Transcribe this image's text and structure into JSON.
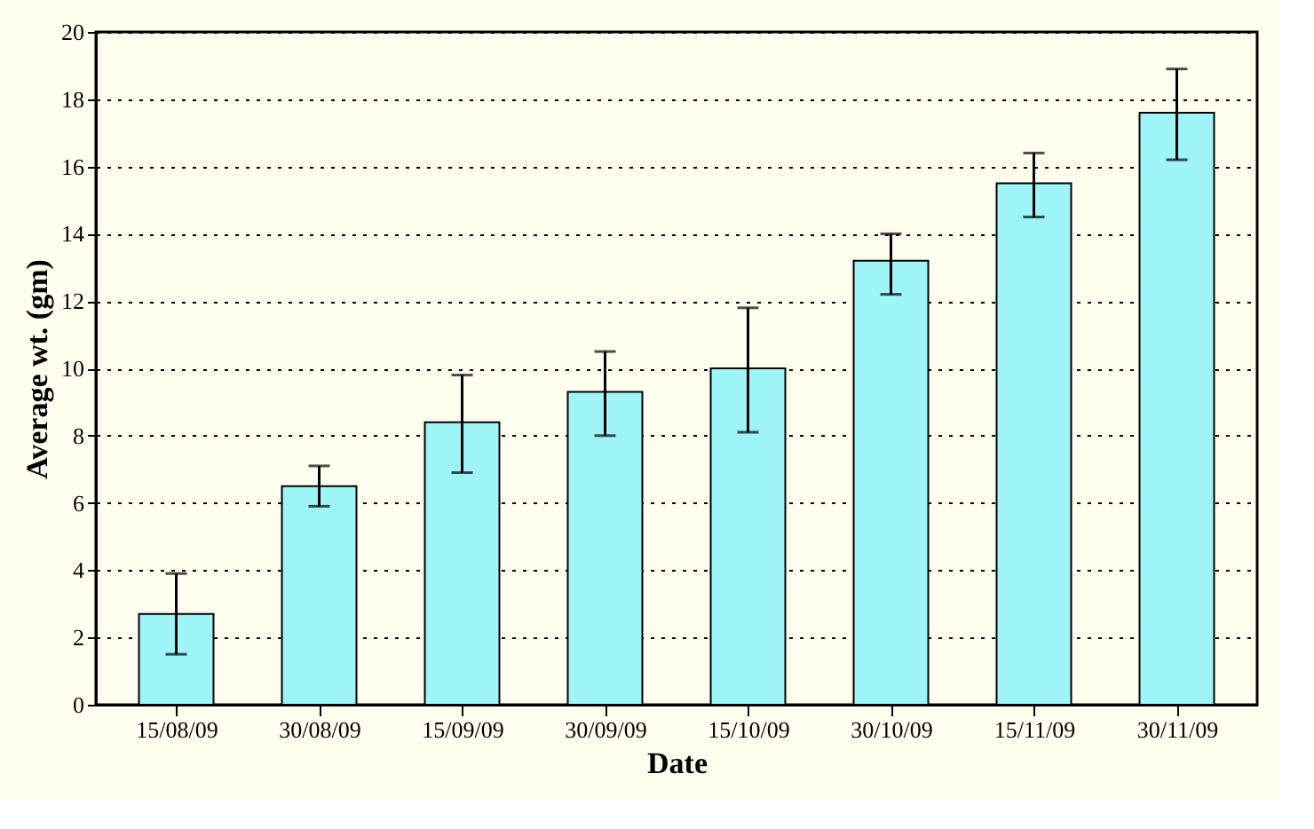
{
  "chart_data": {
    "type": "bar",
    "xlabel": "Date",
    "ylabel": "Average wt. (gm)",
    "categories": [
      "15/08/09",
      "30/08/09",
      "15/09/09",
      "30/09/09",
      "15/10/09",
      "30/10/09",
      "15/11/09",
      "30/11/09"
    ],
    "values": [
      2.7,
      6.5,
      8.4,
      9.3,
      10.0,
      13.2,
      15.5,
      17.6
    ],
    "errors": [
      [
        1.5,
        3.9
      ],
      [
        5.9,
        7.1
      ],
      [
        6.9,
        9.8
      ],
      [
        8.0,
        10.5
      ],
      [
        8.1,
        11.8
      ],
      [
        12.2,
        14.0
      ],
      [
        14.5,
        16.4
      ],
      [
        16.2,
        18.9
      ]
    ],
    "color": "#9ff4f8",
    "ylim": [
      0,
      20
    ],
    "yticks": [
      0,
      2,
      4,
      6,
      8,
      10,
      12,
      14,
      16,
      18,
      20
    ],
    "grid": "y"
  }
}
